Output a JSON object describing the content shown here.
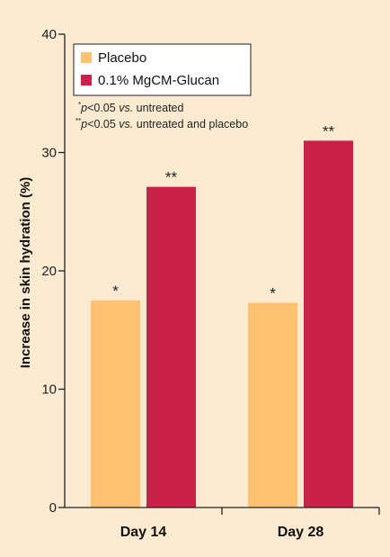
{
  "colors": {
    "background": "#FCEBD1",
    "placebo": "#FCC270",
    "treatment": "#CC1F49",
    "axis": "#222222",
    "legend_bg": "#FFFFFF"
  },
  "chart_data": {
    "type": "bar",
    "categories": [
      "Day 14",
      "Day 28"
    ],
    "series": [
      {
        "name": "Placebo",
        "values": [
          17.5,
          17.3
        ],
        "annotations": [
          "*",
          "*"
        ]
      },
      {
        "name": "0.1% MgCM-Glucan",
        "values": [
          27.1,
          31.0
        ],
        "annotations": [
          "**",
          "**"
        ]
      }
    ],
    "ylabel": "Increase in skin hydration (%)",
    "ylim": [
      0,
      40
    ],
    "yticks": [
      0,
      10,
      20,
      30,
      40
    ],
    "legend_position": "top-left",
    "grid": false,
    "notes": [
      {
        "marker": "*",
        "text_italic": "p",
        "text_main": "<0.05 ",
        "text_italic2": "vs.",
        "text_tail": " untreated"
      },
      {
        "marker": "**",
        "text_italic": "p",
        "text_main": "<0.05 ",
        "text_italic2": "vs.",
        "text_tail": " untreated and placebo"
      }
    ]
  }
}
